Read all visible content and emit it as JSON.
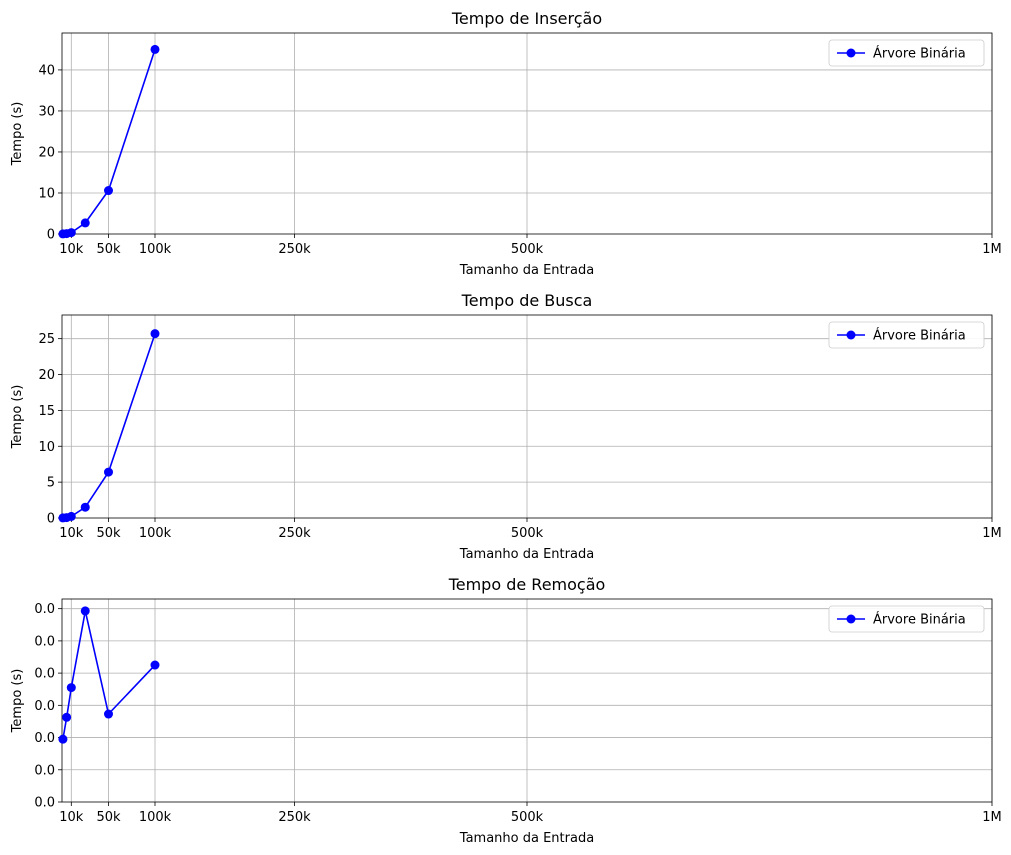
{
  "chart_data": [
    {
      "type": "line",
      "title": "Tempo de Inserção",
      "xlabel": "Tamanho da Entrada",
      "ylabel": "Tempo (s)",
      "xlim": [
        0,
        1000000
      ],
      "ylim": [
        0,
        49
      ],
      "xticks": [
        10000,
        50000,
        100000,
        250000,
        500000,
        1000000
      ],
      "xtick_labels": [
        "10k",
        "50k",
        "100k",
        "250k",
        "500k",
        "1M"
      ],
      "yticks": [
        0,
        10,
        20,
        30,
        40
      ],
      "ytick_labels": [
        "0",
        "10",
        "20",
        "30",
        "40"
      ],
      "grid": true,
      "legend_position": "top-right",
      "series": [
        {
          "name": "Árvore Binária",
          "color": "#0000ff",
          "marker": "circle",
          "x": [
            1000,
            5000,
            10000,
            25000,
            50000,
            100000
          ],
          "y": [
            0.02,
            0.1,
            0.35,
            2.7,
            10.6,
            45.0
          ]
        }
      ]
    },
    {
      "type": "line",
      "title": "Tempo de Busca",
      "xlabel": "Tamanho da Entrada",
      "ylabel": "Tempo (s)",
      "xlim": [
        0,
        1000000
      ],
      "ylim": [
        0,
        28.3
      ],
      "xticks": [
        10000,
        50000,
        100000,
        250000,
        500000,
        1000000
      ],
      "xtick_labels": [
        "10k",
        "50k",
        "100k",
        "250k",
        "500k",
        "1M"
      ],
      "yticks": [
        0,
        5,
        10,
        15,
        20,
        25
      ],
      "ytick_labels": [
        "0",
        "5",
        "10",
        "15",
        "20",
        "25"
      ],
      "grid": true,
      "legend_position": "top-right",
      "series": [
        {
          "name": "Árvore Binária",
          "color": "#0000ff",
          "marker": "circle",
          "x": [
            1000,
            5000,
            10000,
            25000,
            50000,
            100000
          ],
          "y": [
            0.01,
            0.06,
            0.22,
            1.5,
            6.4,
            25.7
          ]
        }
      ]
    },
    {
      "type": "line",
      "title": "Tempo de Remoção",
      "xlabel": "Tamanho da Entrada",
      "ylabel": "Tempo (s)",
      "xlim": [
        0,
        1000000
      ],
      "ylim": [
        0,
        0.0063
      ],
      "xticks": [
        10000,
        50000,
        100000,
        250000,
        500000,
        1000000
      ],
      "xtick_labels": [
        "10k",
        "50k",
        "100k",
        "250k",
        "500k",
        "1M"
      ],
      "yticks": [
        0,
        0.001,
        0.002,
        0.003,
        0.004,
        0.005,
        0.006
      ],
      "ytick_labels": [
        "0.0",
        "0.0",
        "0.0",
        "0.0",
        "0.0",
        "0.0",
        "0.0"
      ],
      "grid": true,
      "legend_position": "top-right",
      "series": [
        {
          "name": "Árvore Binária",
          "color": "#0000ff",
          "marker": "circle",
          "x": [
            1000,
            5000,
            10000,
            25000,
            50000,
            100000
          ],
          "y": [
            0.00195,
            0.00263,
            0.00355,
            0.00593,
            0.00273,
            0.00425
          ]
        }
      ]
    }
  ]
}
